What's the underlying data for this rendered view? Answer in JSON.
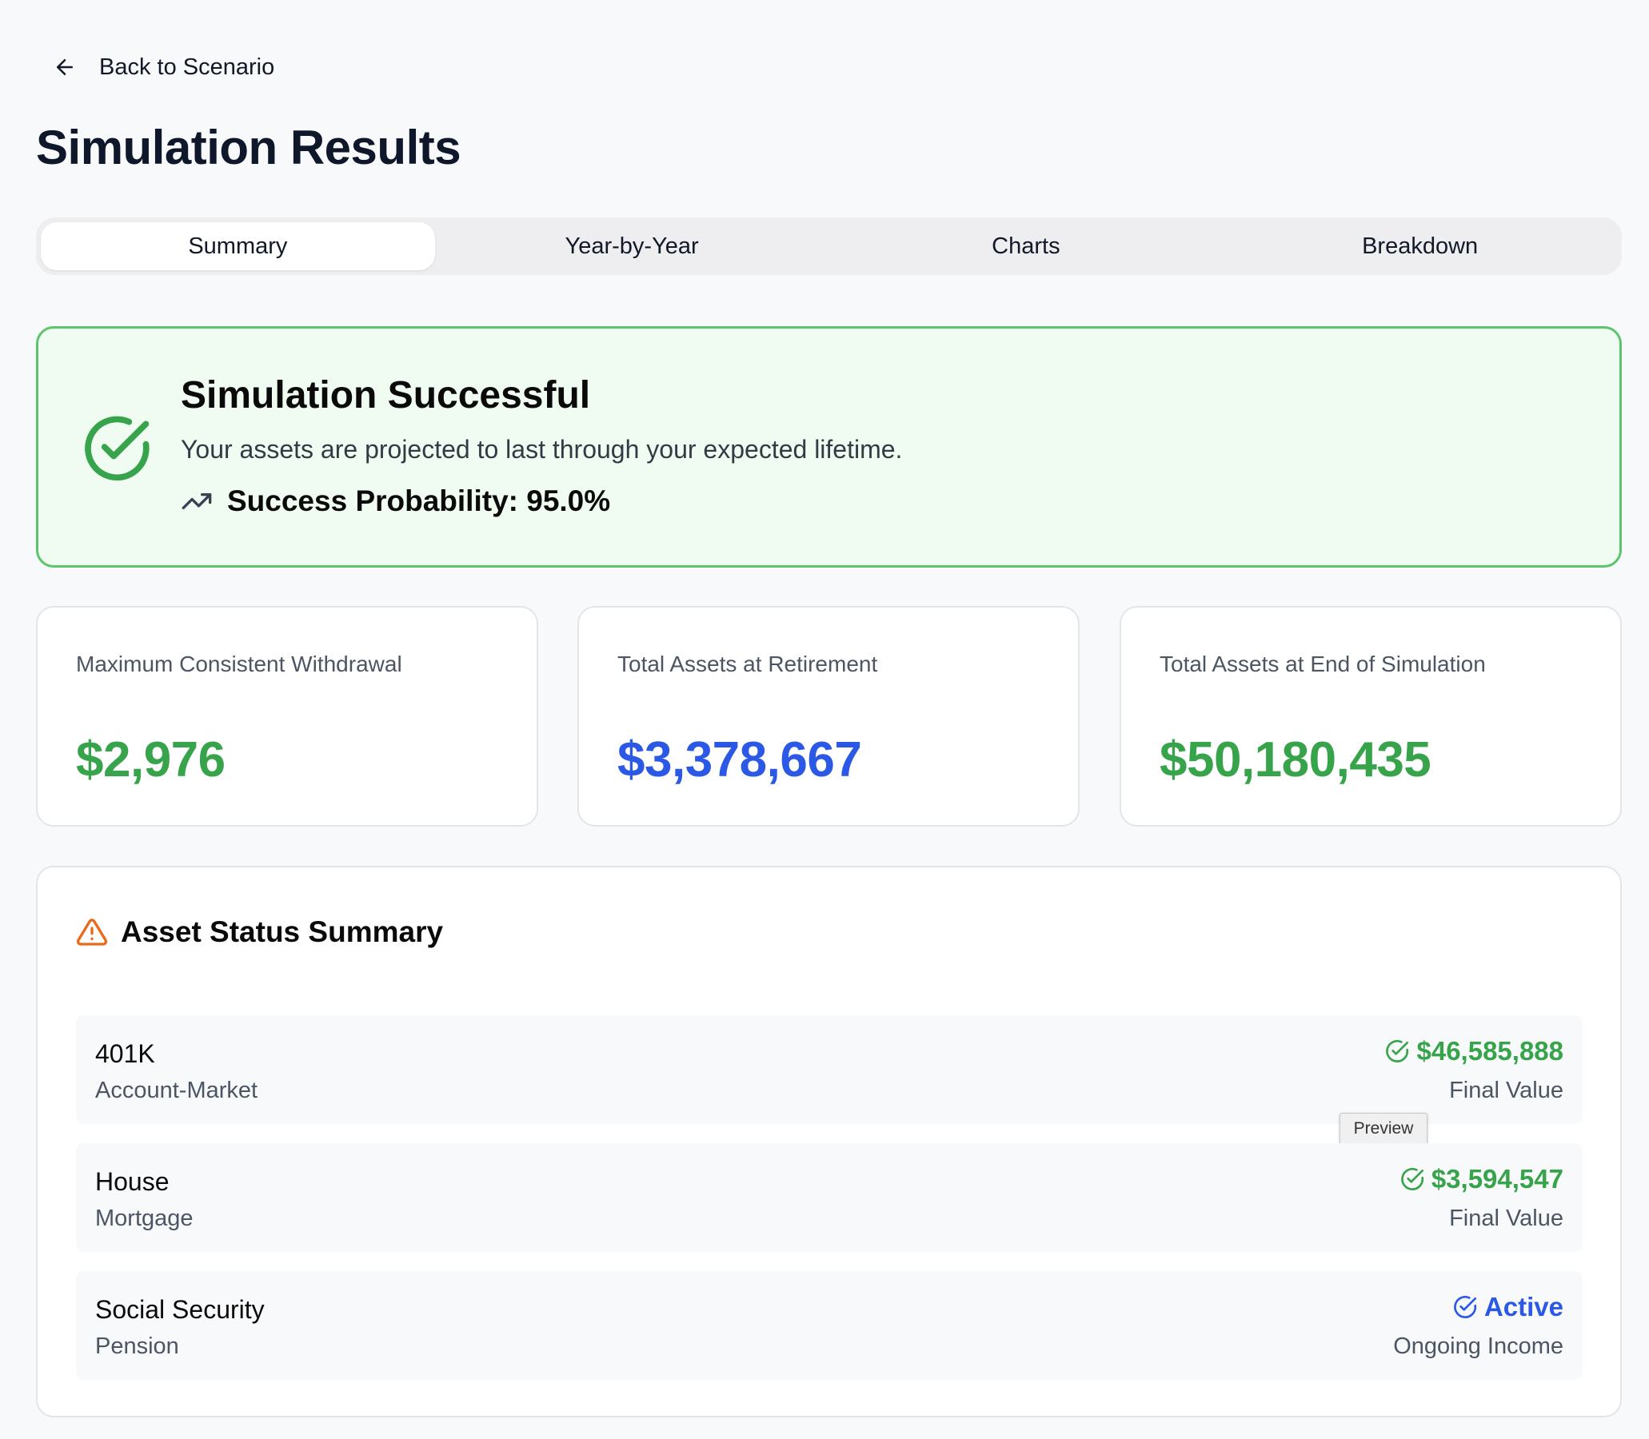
{
  "nav": {
    "back_label": "Back to Scenario"
  },
  "page_title": "Simulation Results",
  "tabs": [
    {
      "label": "Summary",
      "active": true
    },
    {
      "label": "Year-by-Year",
      "active": false
    },
    {
      "label": "Charts",
      "active": false
    },
    {
      "label": "Breakdown",
      "active": false
    }
  ],
  "success_banner": {
    "title": "Simulation Successful",
    "message": "Your assets are projected to last through your expected lifetime.",
    "probability_text": "Success Probability: 95.0%",
    "probability": 0.95,
    "color": "#37a34a"
  },
  "stats": [
    {
      "label": "Maximum Consistent Withdrawal",
      "value": "$2,976",
      "color": "#37a34a"
    },
    {
      "label": "Total Assets at Retirement",
      "value": "$3,378,667",
      "color": "#2b59e6"
    },
    {
      "label": "Total Assets at End of Simulation",
      "value": "$50,180,435",
      "color": "#37a34a"
    }
  ],
  "asset_summary": {
    "title": "Asset Status Summary",
    "icon": "warning-triangle-icon",
    "rows": [
      {
        "name": "401K",
        "type": "Account-Market",
        "value": "$46,585,888",
        "note": "Final Value",
        "status": "ok",
        "color": "#37a34a"
      },
      {
        "name": "House",
        "type": "Mortgage",
        "value": "$3,594,547",
        "note": "Final Value",
        "status": "ok",
        "color": "#37a34a"
      },
      {
        "name": "Social Security",
        "type": "Pension",
        "value": "Active",
        "note": "Ongoing Income",
        "status": "active",
        "color": "#2b59e6"
      }
    ]
  },
  "tooltip": {
    "text": "Preview"
  }
}
